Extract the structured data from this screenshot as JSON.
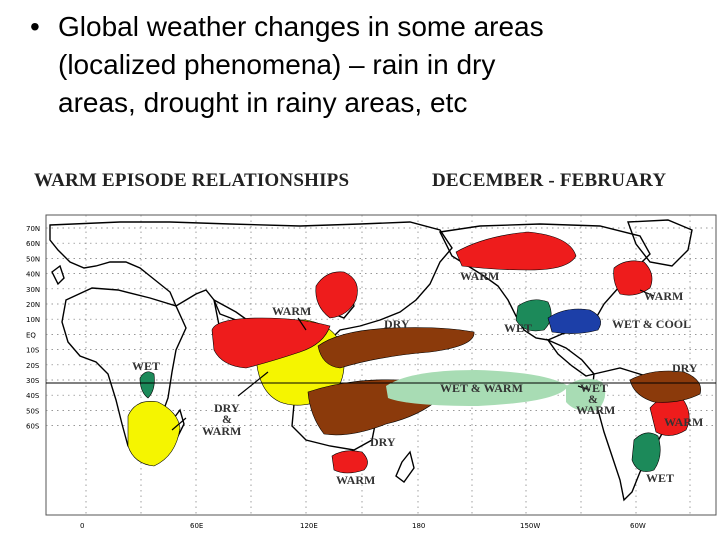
{
  "bullet": {
    "symbol": "•",
    "lines": [
      "Global weather changes in some areas",
      "(localized phenomena) – rain in dry",
      "areas, drought in rainy areas, etc"
    ]
  },
  "map": {
    "title_left": "WARM EPISODE RELATIONSHIPS",
    "title_right": "DECEMBER - FEBRUARY",
    "lat_labels": [
      "70N",
      "60N",
      "50N",
      "40N",
      "30N",
      "20N",
      "10N",
      "EQ",
      "10S",
      "20S",
      "30S",
      "40S",
      "50S",
      "60S"
    ],
    "lon_labels": [
      "0",
      "60E",
      "120E",
      "180",
      "150W",
      "60W"
    ],
    "region_labels": {
      "warm_alaska": "WARM",
      "warm_ne_na": "WARM",
      "warm_asia": "WARM",
      "dry_nw_pacific": "DRY",
      "wet_gulf": "WET",
      "wet_cool": "WET & COOL",
      "dry_south_america": "DRY",
      "wet_east_africa": "WET",
      "dry_warm_africa_1": "DRY",
      "dry_warm_africa_2": "&",
      "dry_warm_africa_3": "WARM",
      "wet_warm_pacific": "WET & WARM",
      "wet_warm_peru_1": "WET",
      "wet_warm_peru_2": "&",
      "wet_warm_peru_3": "WARM",
      "warm_se_south_america": "WARM",
      "dry_australia": "DRY",
      "warm_new_zealand": "WARM",
      "wet_argentina": "WET"
    },
    "colors": {
      "warm": "#ee1c1c",
      "dry": "#8b3a0b",
      "wet": "#1c8a5a",
      "wet_warm": "#a8dcb4",
      "cool": "#1c3fa8",
      "yellow": "#f5f500"
    }
  }
}
